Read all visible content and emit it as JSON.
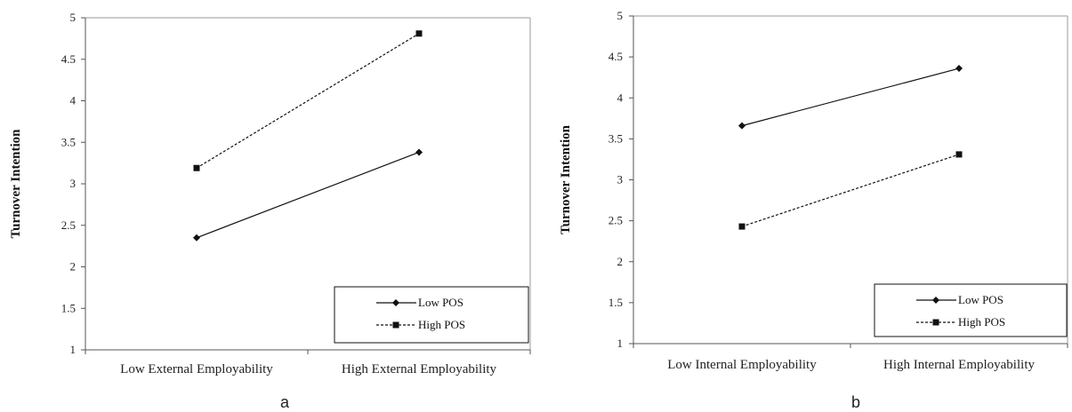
{
  "chart_data": [
    {
      "type": "line",
      "panel_label": "a",
      "categories": [
        "Low External Employability",
        "High External Employability"
      ],
      "ylabel": "Turnover Intention",
      "ylim": [
        1,
        5
      ],
      "yticks": [
        "1",
        "1.5",
        "2",
        "2.5",
        "3",
        "3.5",
        "4",
        "4.5",
        "5"
      ],
      "legend_position": "bottom-right",
      "series": [
        {
          "name": "Low POS",
          "values": [
            2.35,
            3.38
          ],
          "marker": "diamond",
          "style": "solid"
        },
        {
          "name": "High POS",
          "values": [
            3.19,
            4.81
          ],
          "marker": "square",
          "style": "dotted"
        }
      ]
    },
    {
      "type": "line",
      "panel_label": "b",
      "categories": [
        "Low Internal Employability",
        "High Internal Employability"
      ],
      "ylabel": "Turnover Intention",
      "ylim": [
        1,
        5
      ],
      "yticks": [
        "1",
        "1.5",
        "2",
        "2.5",
        "3",
        "3.5",
        "4",
        "4.5",
        "5"
      ],
      "legend_position": "bottom-right",
      "series": [
        {
          "name": "Low POS",
          "values": [
            3.66,
            4.36
          ],
          "marker": "diamond",
          "style": "solid"
        },
        {
          "name": "High POS",
          "values": [
            2.43,
            3.31
          ],
          "marker": "square",
          "style": "dotted"
        }
      ]
    }
  ]
}
